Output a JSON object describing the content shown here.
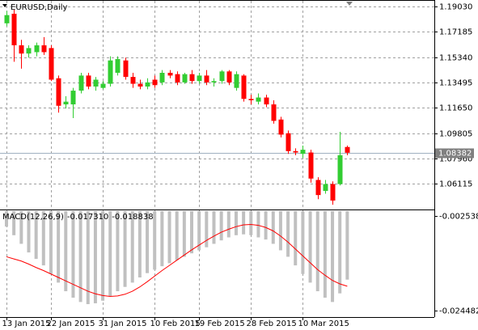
{
  "chart_data": [
    {
      "type": "candlestick",
      "title": "EURUSD,Daily",
      "categories": [
        "13 Jan 2015",
        null,
        null,
        null,
        null,
        null,
        "22 Jan 2015",
        null,
        null,
        null,
        null,
        null,
        null,
        "31 Jan 2015",
        null,
        null,
        null,
        null,
        null,
        null,
        "10 Feb 2015",
        null,
        null,
        null,
        null,
        null,
        "19 Feb 2015",
        null,
        null,
        null,
        null,
        null,
        null,
        "28 Feb 2015",
        null,
        null,
        null,
        null,
        null,
        null,
        "10 Mar 2015",
        null,
        null,
        null,
        null,
        null,
        null
      ],
      "open": [
        1.178,
        1.185,
        1.162,
        1.156,
        1.157,
        1.162,
        1.16,
        1.138,
        1.119,
        1.119,
        1.129,
        1.14,
        1.132,
        1.131,
        1.134,
        1.142,
        1.151,
        1.139,
        1.134,
        1.132,
        1.137,
        1.135,
        1.142,
        1.141,
        1.135,
        1.141,
        1.136,
        1.14,
        1.135,
        1.136,
        1.143,
        1.131,
        1.14,
        1.123,
        1.121,
        1.124,
        1.119,
        1.108,
        1.098,
        1.085,
        1.083,
        1.084,
        1.064,
        1.056,
        1.061,
        1.061,
        1.088
      ],
      "high": [
        1.187,
        1.188,
        1.166,
        1.162,
        1.164,
        1.168,
        1.162,
        1.14,
        1.125,
        1.131,
        1.142,
        1.142,
        1.139,
        1.136,
        1.154,
        1.154,
        1.153,
        1.142,
        1.137,
        1.138,
        1.14,
        1.144,
        1.144,
        1.143,
        1.142,
        1.144,
        1.142,
        1.144,
        1.138,
        1.144,
        1.144,
        1.143,
        1.141,
        1.126,
        1.127,
        1.126,
        1.122,
        1.11,
        1.1,
        1.087,
        1.089,
        1.086,
        1.066,
        1.064,
        1.063,
        1.099,
        1.089
      ],
      "low": [
        1.176,
        1.15,
        1.145,
        1.153,
        1.154,
        1.155,
        1.136,
        1.113,
        1.116,
        1.109,
        1.127,
        1.13,
        1.129,
        1.13,
        1.132,
        1.14,
        1.137,
        1.131,
        1.13,
        1.13,
        1.131,
        1.133,
        1.138,
        1.133,
        1.134,
        1.134,
        1.134,
        1.133,
        1.132,
        1.134,
        1.133,
        1.129,
        1.121,
        1.119,
        1.119,
        1.117,
        1.105,
        1.095,
        1.083,
        1.082,
        1.08,
        1.062,
        1.05,
        1.054,
        1.046,
        1.06,
        1.082
      ],
      "close": [
        1.184,
        1.162,
        1.156,
        1.16,
        1.162,
        1.157,
        1.137,
        1.118,
        1.121,
        1.129,
        1.14,
        1.132,
        1.137,
        1.134,
        1.151,
        1.152,
        1.139,
        1.134,
        1.132,
        1.135,
        1.133,
        1.142,
        1.14,
        1.135,
        1.141,
        1.136,
        1.14,
        1.135,
        1.136,
        1.143,
        1.135,
        1.141,
        1.123,
        1.122,
        1.124,
        1.119,
        1.107,
        1.097,
        1.085,
        1.084,
        1.086,
        1.065,
        1.053,
        1.061,
        1.049,
        1.082,
        1.08382
      ],
      "up_color": "#32cd32",
      "down_color": "#ff0000",
      "ylim": [
        1.0431,
        1.1938
      ],
      "yticks": [
        {
          "value": 1.1903,
          "label": "1.19030"
        },
        1.17185,
        {
          "value": 1.1534,
          "label": "1.15340"
        },
        1.13495,
        {
          "value": 1.1165,
          "label": "1.11650"
        },
        1.09805,
        {
          "value": 1.0796,
          "label": "1.07960"
        },
        1.06115
      ],
      "grid": true
    },
    {
      "type": "macd",
      "title": "MACD(12,26,9)",
      "histogram": {
        "color": "#c0c0c0",
        "value_label": "-0.017310",
        "values": [
          -0.005,
          -0.007,
          -0.009,
          -0.011,
          -0.0125,
          -0.014,
          -0.016,
          -0.018,
          -0.02,
          -0.0215,
          -0.0225,
          -0.023,
          -0.0228,
          -0.0222,
          -0.0212,
          -0.02,
          -0.019,
          -0.018,
          -0.0168,
          -0.0158,
          -0.015,
          -0.0142,
          -0.0135,
          -0.0128,
          -0.012,
          -0.0112,
          -0.0105,
          -0.0098,
          -0.009,
          -0.0082,
          -0.0075,
          -0.007,
          -0.0068,
          -0.007,
          -0.0075,
          -0.008,
          -0.009,
          -0.0105,
          -0.012,
          -0.014,
          -0.016,
          -0.018,
          -0.02,
          -0.0215,
          -0.0225,
          -0.0205,
          -0.01731
        ]
      },
      "signal": {
        "color": "#ff0000",
        "value_label": "-0.018838",
        "values": [
          -0.012,
          -0.0125,
          -0.013,
          -0.0137,
          -0.0145,
          -0.0152,
          -0.016,
          -0.0168,
          -0.0176,
          -0.0184,
          -0.0192,
          -0.02,
          -0.0206,
          -0.021,
          -0.0212,
          -0.0211,
          -0.0207,
          -0.02,
          -0.019,
          -0.0178,
          -0.0165,
          -0.0152,
          -0.014,
          -0.0128,
          -0.0116,
          -0.0104,
          -0.0093,
          -0.0082,
          -0.0072,
          -0.0063,
          -0.0056,
          -0.005,
          -0.0046,
          -0.0045,
          -0.0047,
          -0.0052,
          -0.006,
          -0.0072,
          -0.0086,
          -0.0102,
          -0.0118,
          -0.0134,
          -0.015,
          -0.0163,
          -0.0175,
          -0.0183,
          -0.018838
        ]
      },
      "ylim": [
        -0.026,
        -0.0014
      ],
      "yticks": [
        -0.002538,
        -0.024482
      ]
    }
  ]
}
